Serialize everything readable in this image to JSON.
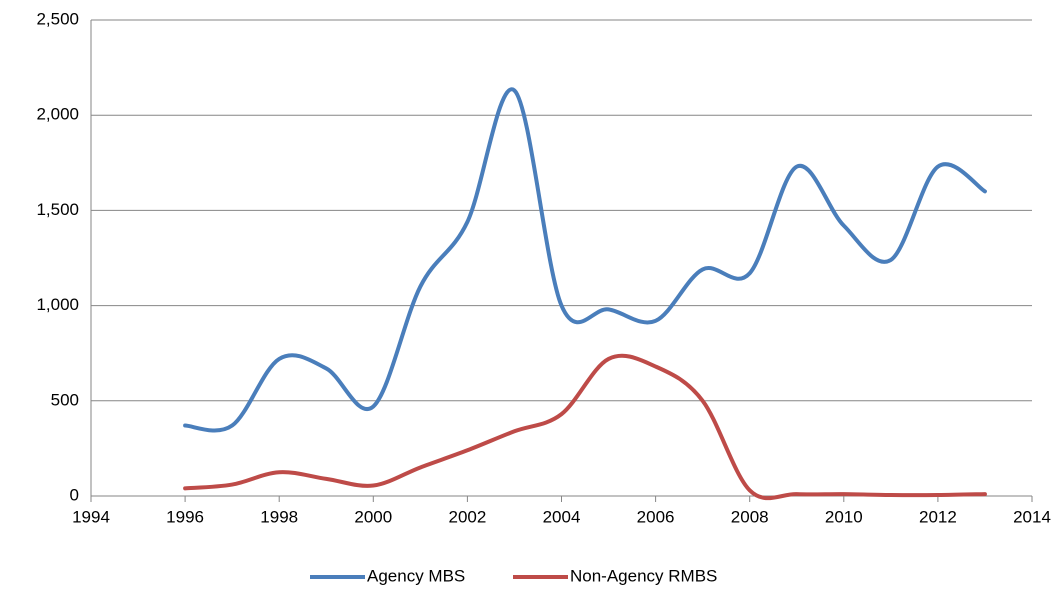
{
  "chart_data": {
    "type": "line",
    "x": [
      1996,
      1997,
      1998,
      1999,
      2000,
      2001,
      2002,
      2003,
      2004,
      2005,
      2006,
      2007,
      2008,
      2009,
      2010,
      2011,
      2012,
      2013
    ],
    "series": [
      {
        "name": "Agency MBS",
        "color": "#4a7ebb",
        "values": [
          370,
          370,
          720,
          670,
          470,
          1100,
          1440,
          2130,
          1000,
          980,
          920,
          1190,
          1170,
          1730,
          1420,
          1240,
          1730,
          1600
        ]
      },
      {
        "name": "Non-Agency RMBS",
        "color": "#be4b48",
        "values": [
          40,
          60,
          125,
          90,
          55,
          150,
          240,
          340,
          430,
          720,
          680,
          500,
          30,
          10,
          10,
          5,
          5,
          10
        ]
      }
    ],
    "xlim": [
      1994,
      2014
    ],
    "xticks": [
      1994,
      1996,
      1998,
      2000,
      2002,
      2004,
      2006,
      2008,
      2010,
      2012,
      2014
    ],
    "ylim": [
      0,
      2500
    ],
    "yticks": [
      0,
      500,
      {
        "value": 1000,
        "label": "1,000"
      },
      {
        "value": 1500,
        "label": "1,500"
      },
      {
        "value": 2000,
        "label": "2,000"
      },
      {
        "value": 2500,
        "label": "2,500"
      }
    ],
    "grid": true,
    "legend": "bottom"
  }
}
